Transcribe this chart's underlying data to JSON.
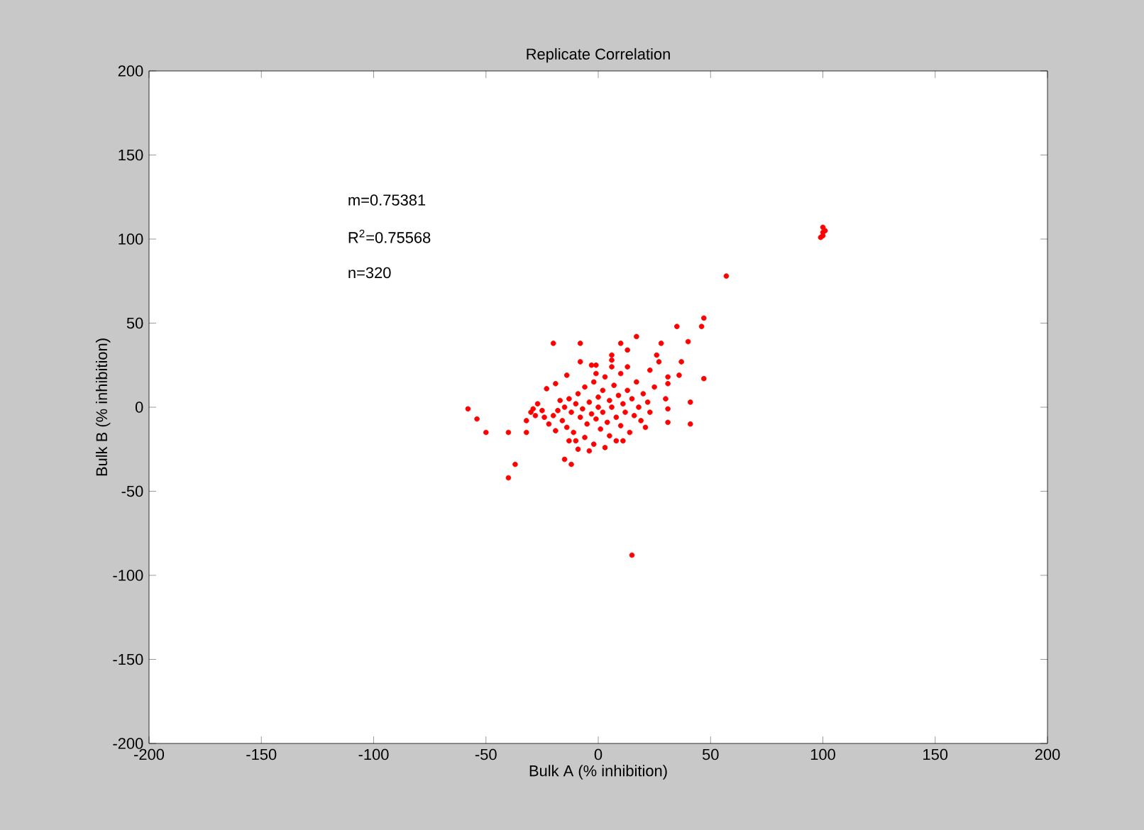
{
  "chart_data": {
    "type": "scatter",
    "title": "Replicate Correlation",
    "xlabel": "Bulk A (% inhibition)",
    "ylabel": "Bulk B (% inhibition)",
    "annotations": [
      "m=0.75381",
      "R$^{2}$=0.75568",
      "n=320"
    ],
    "xlim": [
      -200,
      200
    ],
    "ylim": [
      -200,
      200
    ],
    "xticks": [
      -200,
      -150,
      -100,
      -50,
      0,
      50,
      100,
      150,
      200
    ],
    "yticks": [
      -200,
      -150,
      -100,
      -50,
      0,
      50,
      100,
      150,
      200
    ],
    "marker": "circle",
    "series": [
      {
        "color": "#ff0000",
        "x": [
          57,
          47,
          46,
          35,
          40,
          17,
          -20,
          -8,
          10,
          28,
          13,
          6,
          6,
          26,
          27,
          37,
          -8,
          -1,
          13,
          23,
          36,
          31,
          31,
          47,
          -14,
          -19,
          -23,
          -58,
          -54,
          -50,
          -40,
          -32,
          -37,
          -40,
          41,
          41,
          31,
          30,
          31,
          -27,
          -29,
          -32,
          -15,
          -12,
          15,
          100,
          100,
          100,
          101,
          99,
          -20,
          -18,
          -16,
          -15,
          -14,
          -13,
          -12,
          -11,
          -10,
          -10,
          -9,
          -8,
          -7,
          -6,
          -6,
          -5,
          -4,
          -3,
          -2,
          -2,
          -1,
          0,
          0,
          1,
          2,
          2,
          3,
          4,
          5,
          5,
          6,
          7,
          8,
          9,
          10,
          10,
          11,
          12,
          13,
          14,
          15,
          16,
          17,
          18,
          19,
          20,
          22,
          23,
          25,
          -22,
          -24,
          -19,
          -17,
          -9,
          -4,
          3,
          8,
          -13,
          -1,
          6,
          -3,
          11,
          21,
          -25,
          -28,
          -30
        ],
        "values": [
          78,
          53,
          48,
          48,
          39,
          42,
          38,
          38,
          38,
          38,
          34,
          31,
          28,
          31,
          27,
          27,
          27,
          25,
          24,
          22,
          19,
          18,
          14,
          17,
          19,
          14,
          11,
          -1,
          -7,
          -15,
          -15,
          -15,
          -34,
          -42,
          3,
          -10,
          -9,
          5,
          -1,
          2,
          -1,
          -8,
          -31,
          -34,
          -88,
          102,
          104,
          107,
          105,
          101,
          -5,
          -2,
          -8,
          0,
          -12,
          5,
          -3,
          -15,
          2,
          -20,
          8,
          -6,
          -1,
          -18,
          12,
          -10,
          3,
          -4,
          -22,
          15,
          -7,
          0,
          6,
          -13,
          10,
          -3,
          18,
          -9,
          4,
          -17,
          0,
          13,
          -6,
          7,
          -11,
          20,
          2,
          -3,
          10,
          -15,
          5,
          -5,
          15,
          0,
          -8,
          8,
          3,
          -3,
          12,
          -10,
          -6,
          -14,
          4,
          -25,
          -26,
          -24,
          -20,
          -20,
          20,
          24,
          25,
          -20,
          -12,
          -2,
          -5,
          -3
        ]
      }
    ]
  }
}
